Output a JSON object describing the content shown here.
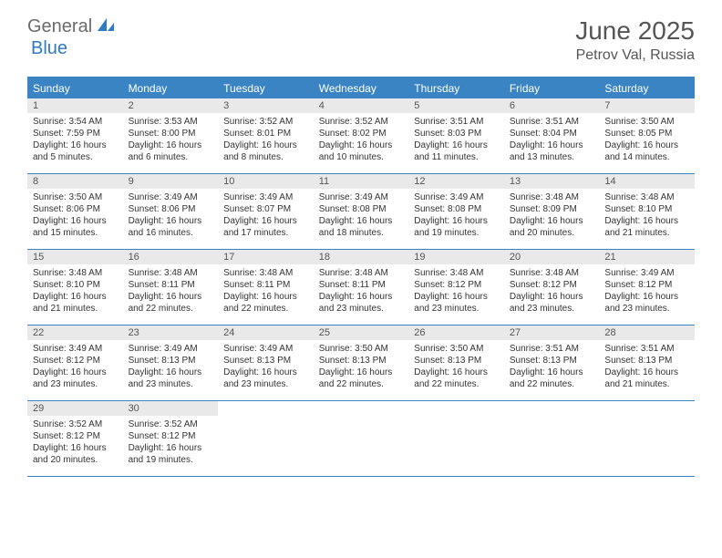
{
  "logo": {
    "part1": "General",
    "part2": "Blue"
  },
  "title": "June 2025",
  "location": "Petrov Val, Russia",
  "colors": {
    "header_bg": "#3b84c4",
    "date_bar_bg": "#e9e9e9",
    "text": "#333333",
    "muted": "#555555",
    "logo_gray": "#6b6b6b",
    "logo_blue": "#2f7bbf"
  },
  "day_names": [
    "Sunday",
    "Monday",
    "Tuesday",
    "Wednesday",
    "Thursday",
    "Friday",
    "Saturday"
  ],
  "weeks": [
    [
      {
        "date": "1",
        "sunrise": "Sunrise: 3:54 AM",
        "sunset": "Sunset: 7:59 PM",
        "daylight": "Daylight: 16 hours and 5 minutes."
      },
      {
        "date": "2",
        "sunrise": "Sunrise: 3:53 AM",
        "sunset": "Sunset: 8:00 PM",
        "daylight": "Daylight: 16 hours and 6 minutes."
      },
      {
        "date": "3",
        "sunrise": "Sunrise: 3:52 AM",
        "sunset": "Sunset: 8:01 PM",
        "daylight": "Daylight: 16 hours and 8 minutes."
      },
      {
        "date": "4",
        "sunrise": "Sunrise: 3:52 AM",
        "sunset": "Sunset: 8:02 PM",
        "daylight": "Daylight: 16 hours and 10 minutes."
      },
      {
        "date": "5",
        "sunrise": "Sunrise: 3:51 AM",
        "sunset": "Sunset: 8:03 PM",
        "daylight": "Daylight: 16 hours and 11 minutes."
      },
      {
        "date": "6",
        "sunrise": "Sunrise: 3:51 AM",
        "sunset": "Sunset: 8:04 PM",
        "daylight": "Daylight: 16 hours and 13 minutes."
      },
      {
        "date": "7",
        "sunrise": "Sunrise: 3:50 AM",
        "sunset": "Sunset: 8:05 PM",
        "daylight": "Daylight: 16 hours and 14 minutes."
      }
    ],
    [
      {
        "date": "8",
        "sunrise": "Sunrise: 3:50 AM",
        "sunset": "Sunset: 8:06 PM",
        "daylight": "Daylight: 16 hours and 15 minutes."
      },
      {
        "date": "9",
        "sunrise": "Sunrise: 3:49 AM",
        "sunset": "Sunset: 8:06 PM",
        "daylight": "Daylight: 16 hours and 16 minutes."
      },
      {
        "date": "10",
        "sunrise": "Sunrise: 3:49 AM",
        "sunset": "Sunset: 8:07 PM",
        "daylight": "Daylight: 16 hours and 17 minutes."
      },
      {
        "date": "11",
        "sunrise": "Sunrise: 3:49 AM",
        "sunset": "Sunset: 8:08 PM",
        "daylight": "Daylight: 16 hours and 18 minutes."
      },
      {
        "date": "12",
        "sunrise": "Sunrise: 3:49 AM",
        "sunset": "Sunset: 8:08 PM",
        "daylight": "Daylight: 16 hours and 19 minutes."
      },
      {
        "date": "13",
        "sunrise": "Sunrise: 3:48 AM",
        "sunset": "Sunset: 8:09 PM",
        "daylight": "Daylight: 16 hours and 20 minutes."
      },
      {
        "date": "14",
        "sunrise": "Sunrise: 3:48 AM",
        "sunset": "Sunset: 8:10 PM",
        "daylight": "Daylight: 16 hours and 21 minutes."
      }
    ],
    [
      {
        "date": "15",
        "sunrise": "Sunrise: 3:48 AM",
        "sunset": "Sunset: 8:10 PM",
        "daylight": "Daylight: 16 hours and 21 minutes."
      },
      {
        "date": "16",
        "sunrise": "Sunrise: 3:48 AM",
        "sunset": "Sunset: 8:11 PM",
        "daylight": "Daylight: 16 hours and 22 minutes."
      },
      {
        "date": "17",
        "sunrise": "Sunrise: 3:48 AM",
        "sunset": "Sunset: 8:11 PM",
        "daylight": "Daylight: 16 hours and 22 minutes."
      },
      {
        "date": "18",
        "sunrise": "Sunrise: 3:48 AM",
        "sunset": "Sunset: 8:11 PM",
        "daylight": "Daylight: 16 hours and 23 minutes."
      },
      {
        "date": "19",
        "sunrise": "Sunrise: 3:48 AM",
        "sunset": "Sunset: 8:12 PM",
        "daylight": "Daylight: 16 hours and 23 minutes."
      },
      {
        "date": "20",
        "sunrise": "Sunrise: 3:48 AM",
        "sunset": "Sunset: 8:12 PM",
        "daylight": "Daylight: 16 hours and 23 minutes."
      },
      {
        "date": "21",
        "sunrise": "Sunrise: 3:49 AM",
        "sunset": "Sunset: 8:12 PM",
        "daylight": "Daylight: 16 hours and 23 minutes."
      }
    ],
    [
      {
        "date": "22",
        "sunrise": "Sunrise: 3:49 AM",
        "sunset": "Sunset: 8:12 PM",
        "daylight": "Daylight: 16 hours and 23 minutes."
      },
      {
        "date": "23",
        "sunrise": "Sunrise: 3:49 AM",
        "sunset": "Sunset: 8:13 PM",
        "daylight": "Daylight: 16 hours and 23 minutes."
      },
      {
        "date": "24",
        "sunrise": "Sunrise: 3:49 AM",
        "sunset": "Sunset: 8:13 PM",
        "daylight": "Daylight: 16 hours and 23 minutes."
      },
      {
        "date": "25",
        "sunrise": "Sunrise: 3:50 AM",
        "sunset": "Sunset: 8:13 PM",
        "daylight": "Daylight: 16 hours and 22 minutes."
      },
      {
        "date": "26",
        "sunrise": "Sunrise: 3:50 AM",
        "sunset": "Sunset: 8:13 PM",
        "daylight": "Daylight: 16 hours and 22 minutes."
      },
      {
        "date": "27",
        "sunrise": "Sunrise: 3:51 AM",
        "sunset": "Sunset: 8:13 PM",
        "daylight": "Daylight: 16 hours and 22 minutes."
      },
      {
        "date": "28",
        "sunrise": "Sunrise: 3:51 AM",
        "sunset": "Sunset: 8:13 PM",
        "daylight": "Daylight: 16 hours and 21 minutes."
      }
    ],
    [
      {
        "date": "29",
        "sunrise": "Sunrise: 3:52 AM",
        "sunset": "Sunset: 8:12 PM",
        "daylight": "Daylight: 16 hours and 20 minutes."
      },
      {
        "date": "30",
        "sunrise": "Sunrise: 3:52 AM",
        "sunset": "Sunset: 8:12 PM",
        "daylight": "Daylight: 16 hours and 19 minutes."
      },
      null,
      null,
      null,
      null,
      null
    ]
  ]
}
